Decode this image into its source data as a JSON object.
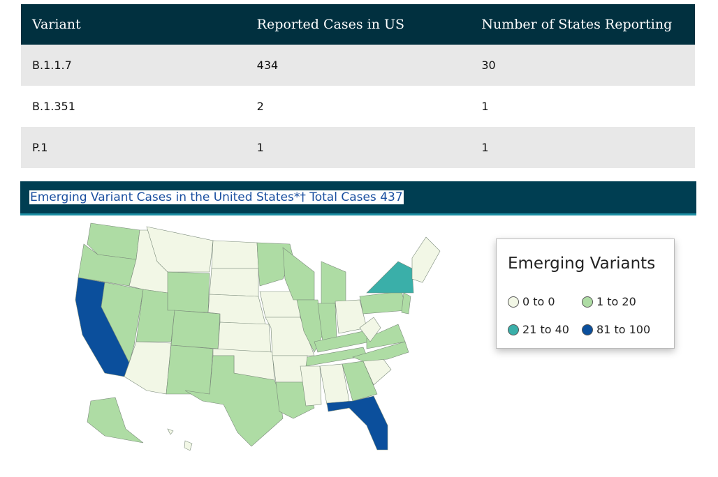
{
  "table": {
    "header": [
      "Variant",
      "Reported Cases in US",
      "Number of States Reporting"
    ],
    "rows": [
      [
        "B.1.1.7",
        "434",
        "30"
      ],
      [
        "B.1.351",
        "2",
        "1"
      ],
      [
        "P.1",
        "1",
        "1"
      ]
    ]
  },
  "map": {
    "title": "Emerging Variant Cases in the United States*† Total Cases 437",
    "legend": {
      "title": "Emerging Variants",
      "items": [
        {
          "label": "0 to 0",
          "color": "#f2f7e6"
        },
        {
          "label": "1 to 20",
          "color": "#aedca4"
        },
        {
          "label": "21 to 40",
          "color": "#3aafa9"
        },
        {
          "label": "81 to 100",
          "color": "#0b4f9c"
        }
      ]
    }
  }
}
